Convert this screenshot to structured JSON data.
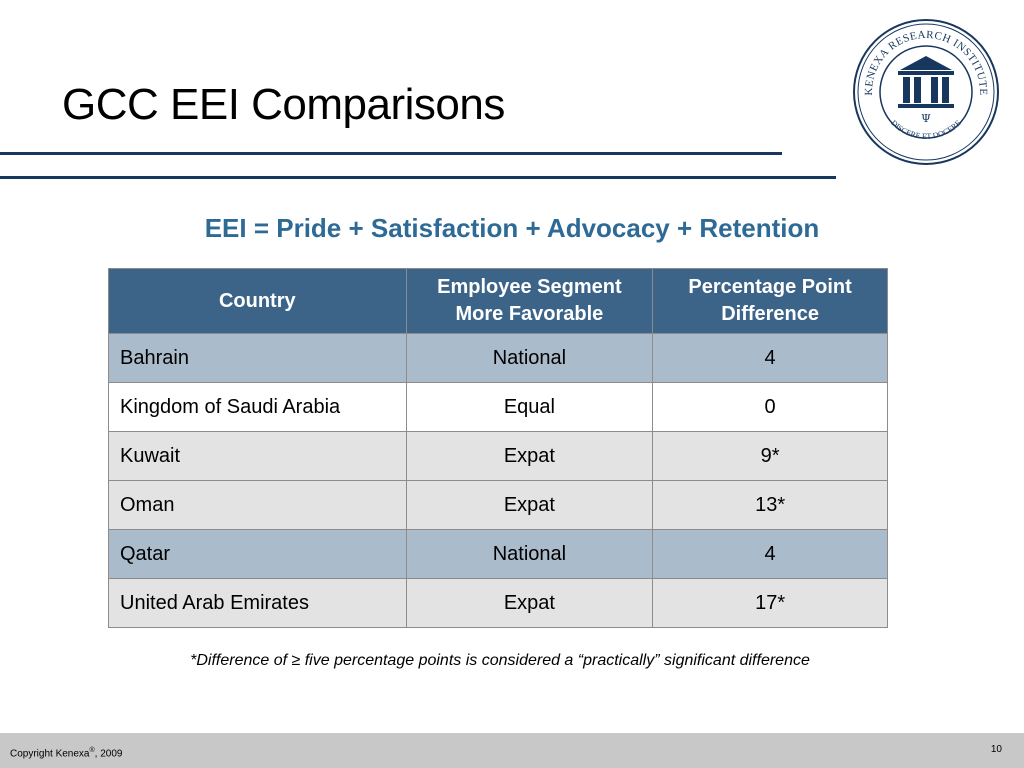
{
  "slide": {
    "title": "GCC EEI Comparisons",
    "formula": "EEI = Pride + Satisfaction + Advocacy + Retention",
    "footnote": "*Difference of ≥ five percentage points is considered a “practically” significant difference"
  },
  "seal": {
    "ring_text": "KENEXA RESEARCH INSTITUTE",
    "motto": "DISCERE ET DOCERE",
    "symbol": "Ψ",
    "color": "#17375e"
  },
  "table": {
    "headers": {
      "country": "Country",
      "segment_line1": "Employee Segment",
      "segment_line2": "More Favorable",
      "difference_line1": "Percentage Point",
      "difference_line2": "Difference"
    },
    "rows": [
      {
        "country": "Bahrain",
        "segment": "National",
        "difference": "4"
      },
      {
        "country": "Kingdom of Saudi Arabia",
        "segment": "Equal",
        "difference": "0"
      },
      {
        "country": "Kuwait",
        "segment": "Expat",
        "difference": "9*"
      },
      {
        "country": "Oman",
        "segment": "Expat",
        "difference": "13*"
      },
      {
        "country": "Qatar",
        "segment": "National",
        "difference": "4"
      },
      {
        "country": "United Arab Emirates",
        "segment": "Expat",
        "difference": "17*"
      }
    ]
  },
  "footer": {
    "copyright": "Copyright Kenexa",
    "registered": "®",
    "year": ", 2009",
    "page_number": "10"
  },
  "colors": {
    "header_bg": "#3c6489",
    "row_blue": "#aabbcb",
    "row_gray": "#e3e3e3",
    "formula_text": "#2e6a96",
    "rule": "#17375e"
  }
}
